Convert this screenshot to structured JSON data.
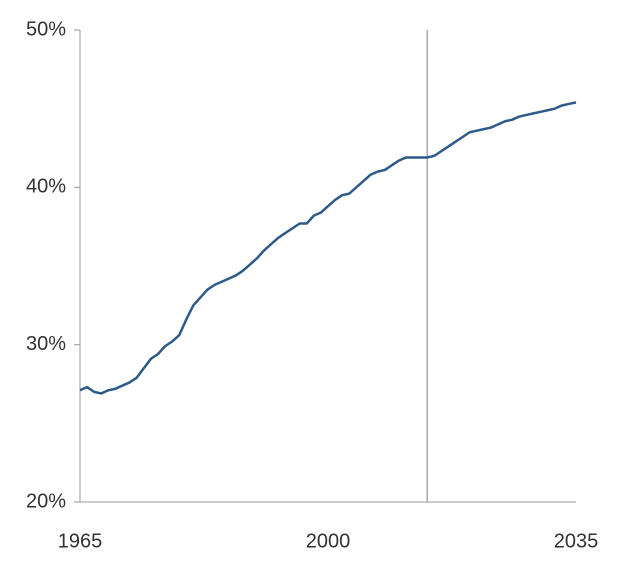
{
  "chart_data": {
    "type": "line",
    "x": [
      1965,
      1966,
      1967,
      1968,
      1969,
      1970,
      1971,
      1972,
      1973,
      1974,
      1975,
      1976,
      1977,
      1978,
      1979,
      1980,
      1981,
      1982,
      1983,
      1984,
      1985,
      1986,
      1987,
      1988,
      1989,
      1990,
      1991,
      1992,
      1993,
      1994,
      1995,
      1996,
      1997,
      1998,
      1999,
      2000,
      2001,
      2002,
      2003,
      2004,
      2005,
      2006,
      2007,
      2008,
      2009,
      2010,
      2011,
      2012,
      2013,
      2014,
      2015,
      2016,
      2017,
      2018,
      2019,
      2020,
      2021,
      2022,
      2023,
      2024,
      2025,
      2026,
      2027,
      2028,
      2029,
      2030,
      2031,
      2032,
      2033,
      2034,
      2035
    ],
    "series": [
      {
        "color": "#2e5a8a",
        "values": [
          27.1,
          27.3,
          27.0,
          26.9,
          27.1,
          27.2,
          27.4,
          27.6,
          27.9,
          28.5,
          29.1,
          29.4,
          29.9,
          30.2,
          30.6,
          31.6,
          32.5,
          33.0,
          33.5,
          33.8,
          34.0,
          34.2,
          34.4,
          34.7,
          35.1,
          35.5,
          36.0,
          36.4,
          36.8,
          37.1,
          37.4,
          37.7,
          37.7,
          38.2,
          38.4,
          38.8,
          39.2,
          39.5,
          39.6,
          40.0,
          40.4,
          40.8,
          41.0,
          41.1,
          41.4,
          41.7,
          41.9,
          41.9,
          41.9,
          41.9,
          42.0,
          42.3,
          42.6,
          42.9,
          43.2,
          43.5,
          43.6,
          43.7,
          43.8,
          44.0,
          44.2,
          44.3,
          44.5,
          44.6,
          44.7,
          44.8,
          44.9,
          45.0,
          45.2,
          45.3,
          45.4
        ]
      }
    ],
    "xlim": [
      1965,
      2035
    ],
    "xticks": [
      1965,
      2000,
      2035
    ],
    "ylim": [
      20,
      50
    ],
    "yticks": [
      {
        "value": 20,
        "label": "20%"
      },
      {
        "value": 30,
        "label": "30%"
      },
      {
        "value": 40,
        "label": "40%"
      },
      {
        "value": 50,
        "label": "50%"
      }
    ],
    "divider_x": 2014
  }
}
